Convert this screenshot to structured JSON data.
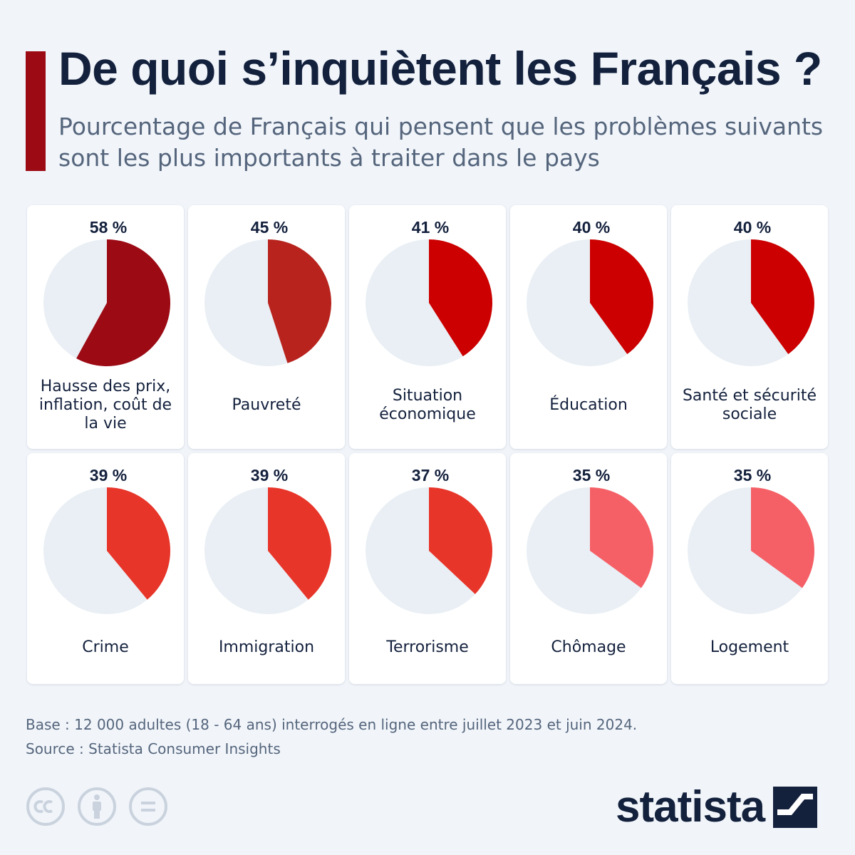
{
  "header": {
    "title": "De quoi s’inquiètent les Français ?",
    "subtitle": "Pourcentage de Français qui pensent que les problèmes suivants sont les plus importants à traiter dans le pays"
  },
  "colors": {
    "accent": "#9c0a14",
    "pie_background": "#e9eff4",
    "text": "#14213d",
    "muted_text": "#55657c"
  },
  "chart_data": {
    "type": "pie",
    "title": "De quoi s’inquiètent les Français ?",
    "unit": "%",
    "items": [
      {
        "label": "Hausse des prix, inflation, coût de la vie",
        "value": 58,
        "value_label": "58 %",
        "color": "#9c0a14"
      },
      {
        "label": "Pauvreté",
        "value": 45,
        "value_label": "45 %",
        "color": "#b8231d"
      },
      {
        "label": "Situation économique",
        "value": 41,
        "value_label": "41 %",
        "color": "#cc0000"
      },
      {
        "label": "Éducation",
        "value": 40,
        "value_label": "40 %",
        "color": "#cc0000"
      },
      {
        "label": "Santé et sécurité sociale",
        "value": 40,
        "value_label": "40 %",
        "color": "#cc0000"
      },
      {
        "label": "Crime",
        "value": 39,
        "value_label": "39 %",
        "color": "#e8352a"
      },
      {
        "label": "Immigration",
        "value": 39,
        "value_label": "39 %",
        "color": "#e8352a"
      },
      {
        "label": "Terrorisme",
        "value": 37,
        "value_label": "37 %",
        "color": "#e8352a"
      },
      {
        "label": "Chômage",
        "value": 35,
        "value_label": "35 %",
        "color": "#f56066"
      },
      {
        "label": "Logement",
        "value": 35,
        "value_label": "35 %",
        "color": "#f56066"
      }
    ]
  },
  "footer": {
    "base": "Base : 12 000 adultes (18 - 64 ans) interrogés en ligne entre juillet 2023 et juin 2024.",
    "source": "Source : Statista Consumer Insights",
    "license_icons": [
      "cc-icon",
      "by-person-icon",
      "no-derivatives-icon"
    ],
    "brand": "statista"
  }
}
